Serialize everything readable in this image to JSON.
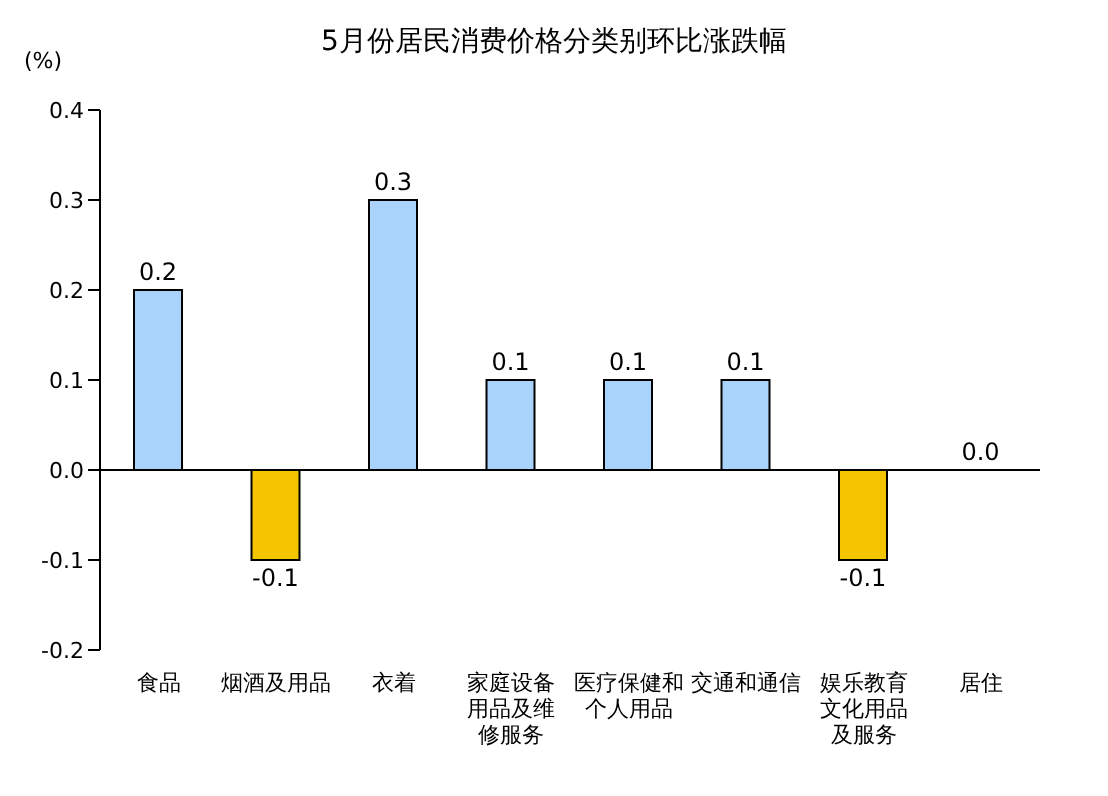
{
  "chart_data": {
    "type": "bar",
    "title": "5月份居民消费价格分类别环比涨跌幅",
    "ylabel": "(%)",
    "categories": [
      "食品",
      "烟酒及用品",
      "衣着",
      "家庭设备用品及维修服务",
      "医疗保健和个人用品",
      "交通和通信",
      "娱乐教育文化用品及服务",
      "居住"
    ],
    "ref_lines": [
      {
        "axis": "y",
        "value": 0,
        "color": "#000000"
      }
    ],
    "values": [
      0.2,
      -0.1,
      0.3,
      0.1,
      0.1,
      0.1,
      -0.1,
      0.0
    ],
    "colors": [
      "#a9d3fa",
      "#f5c400",
      "#a9d3fa",
      "#a9d3fa",
      "#a9d3fa",
      "#a9d3fa",
      "#f5c400",
      "#a9d3fa"
    ],
    "value_labels": [
      "0.2",
      "-0.1",
      "0.3",
      "0.1",
      "0.1",
      "0.1",
      "-0.1",
      "0.0"
    ],
    "ylim": [
      -0.2,
      0.4
    ],
    "yticks": [
      0.4,
      0.3,
      0.2,
      0.1,
      {
        "value": 0,
        "label": "0.0"
      },
      -0.1,
      -0.2
    ],
    "grid": false,
    "legend": false
  }
}
